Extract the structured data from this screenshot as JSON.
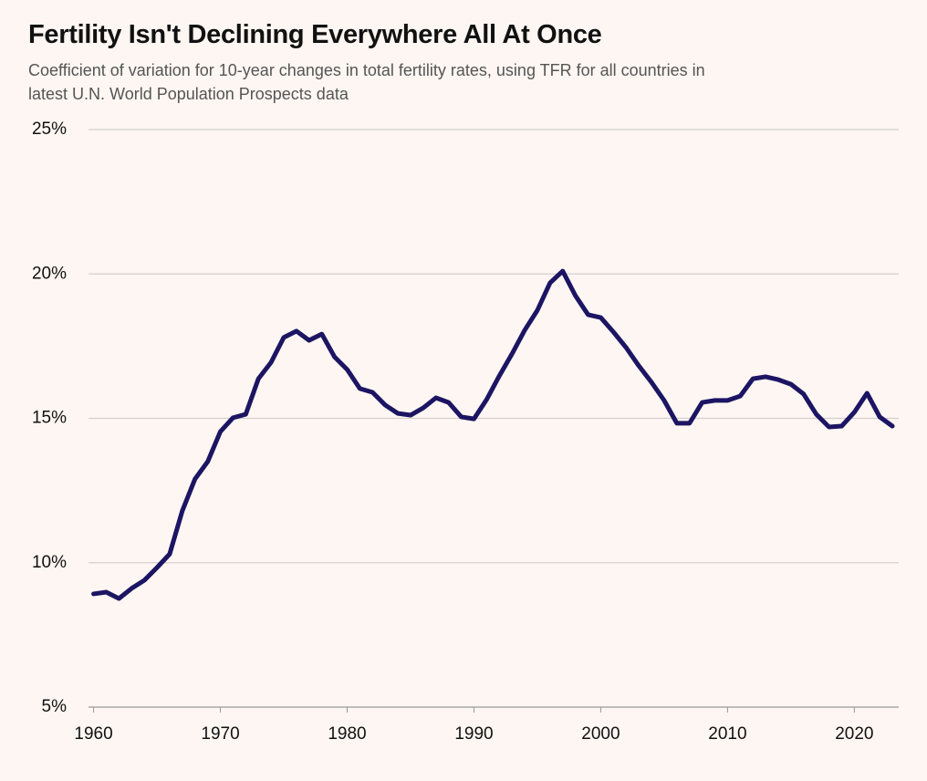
{
  "chart_data": {
    "type": "line",
    "title": "Fertility Isn't Declining Everywhere All At Once",
    "subtitle": "Coefficient of variation for 10-year changes in total fertility rates, using TFR for all countries in latest U.N. World Population Prospects data",
    "x": [
      1960,
      1961,
      1962,
      1963,
      1964,
      1965,
      1966,
      1967,
      1968,
      1969,
      1970,
      1971,
      1972,
      1973,
      1974,
      1975,
      1976,
      1977,
      1978,
      1979,
      1980,
      1981,
      1982,
      1983,
      1984,
      1985,
      1986,
      1987,
      1988,
      1989,
      1990,
      1991,
      1992,
      1993,
      1994,
      1995,
      1996,
      1997,
      1998,
      1999,
      2000,
      2001,
      2002,
      2003,
      2004,
      2005,
      2006,
      2007,
      2008,
      2009,
      2010,
      2011,
      2012,
      2013,
      2014,
      2015,
      2016,
      2017,
      2018,
      2019,
      2020,
      2021,
      2022,
      2023
    ],
    "series": [
      {
        "name": "Coefficient of variation",
        "color": "#1c1563",
        "values": [
          8.92,
          8.98,
          8.76,
          9.11,
          9.39,
          9.83,
          10.3,
          11.8,
          12.9,
          13.5,
          14.54,
          15.02,
          15.14,
          16.37,
          16.94,
          17.8,
          18.02,
          17.7,
          17.92,
          17.13,
          16.69,
          16.03,
          15.9,
          15.46,
          15.17,
          15.11,
          15.36,
          15.71,
          15.55,
          15.05,
          14.98,
          15.65,
          16.47,
          17.23,
          18.05,
          18.74,
          19.69,
          20.1,
          19.25,
          18.59,
          18.49,
          17.99,
          17.45,
          16.82,
          16.25,
          15.62,
          14.83,
          14.83,
          15.55,
          15.62,
          15.62,
          15.77,
          16.37,
          16.44,
          16.34,
          16.18,
          15.84,
          15.14,
          14.7,
          14.73,
          15.21,
          15.87,
          15.05,
          14.73
        ]
      }
    ],
    "xlim": [
      1959.6,
      2023.5
    ],
    "xticks": [
      1960,
      1970,
      1980,
      1990,
      2000,
      2010,
      2020
    ],
    "ylim": [
      5,
      25
    ],
    "yticks": [
      {
        "value": 5,
        "label": "5%"
      },
      {
        "value": 10,
        "label": "10%"
      },
      {
        "value": 15,
        "label": "15%"
      },
      {
        "value": 20,
        "label": "20%"
      },
      {
        "value": 25,
        "label": "25%"
      }
    ],
    "grid": true
  }
}
